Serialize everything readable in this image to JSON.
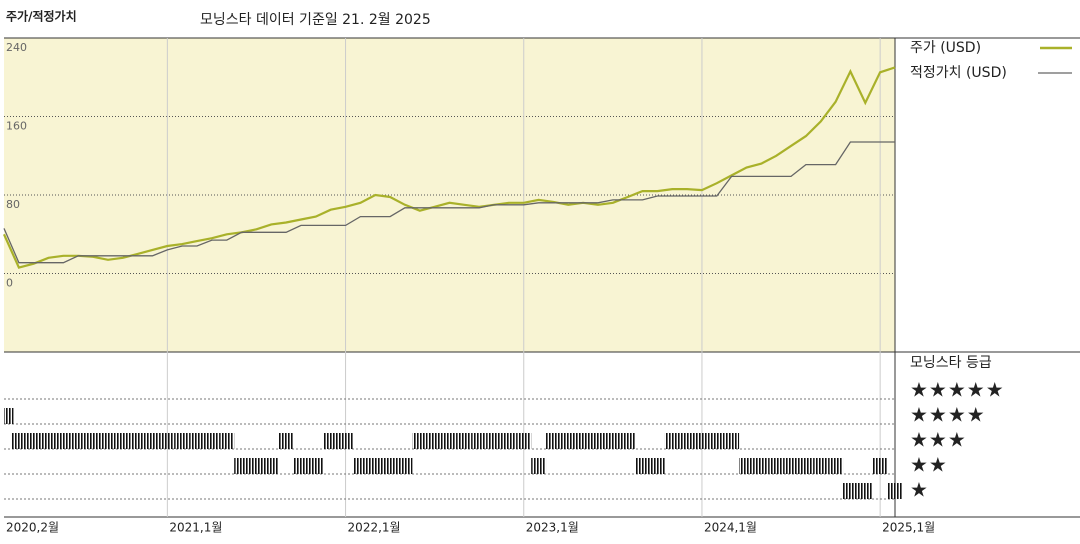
{
  "chart_data": {
    "type": "line",
    "title": "주가/적정가치",
    "subtitle": "모닝스타 데이터 기준일 21. 2월 2025",
    "x": [
      "2020-02",
      "2020-03",
      "2020-04",
      "2020-05",
      "2020-06",
      "2020-07",
      "2020-08",
      "2020-09",
      "2020-10",
      "2020-11",
      "2020-12",
      "2021-01",
      "2021-02",
      "2021-03",
      "2021-04",
      "2021-05",
      "2021-06",
      "2021-07",
      "2021-08",
      "2021-09",
      "2021-10",
      "2021-11",
      "2021-12",
      "2022-01",
      "2022-02",
      "2022-03",
      "2022-04",
      "2022-05",
      "2022-06",
      "2022-07",
      "2022-08",
      "2022-09",
      "2022-10",
      "2022-11",
      "2022-12",
      "2023-01",
      "2023-02",
      "2023-03",
      "2023-04",
      "2023-05",
      "2023-06",
      "2023-07",
      "2023-08",
      "2023-09",
      "2023-10",
      "2023-11",
      "2023-12",
      "2024-01",
      "2024-02",
      "2024-03",
      "2024-04",
      "2024-05",
      "2024-06",
      "2024-07",
      "2024-08",
      "2024-09",
      "2024-10",
      "2024-11",
      "2024-12",
      "2025-01",
      "2025-02"
    ],
    "xticks": [
      {
        "value": "2020-02",
        "label": "2020,2월"
      },
      {
        "value": "2021-01",
        "label": "2021,1월"
      },
      {
        "value": "2022-01",
        "label": "2022,1월"
      },
      {
        "value": "2023-01",
        "label": "2023,1월"
      },
      {
        "value": "2024-01",
        "label": "2024,1월"
      },
      {
        "value": "2025-01",
        "label": "2025,1월"
      }
    ],
    "ylim": [
      -80,
      240
    ],
    "yticks": [
      0,
      80,
      160,
      240
    ],
    "grid": true,
    "series": [
      {
        "name": "주가 (USD)",
        "color": "#a9b12a",
        "values": [
          40,
          6,
          10,
          16,
          18,
          18,
          17,
          14,
          16,
          20,
          24,
          28,
          30,
          33,
          36,
          40,
          42,
          45,
          50,
          52,
          55,
          58,
          65,
          68,
          72,
          80,
          78,
          70,
          64,
          68,
          72,
          70,
          68,
          70,
          72,
          72,
          75,
          73,
          70,
          72,
          70,
          72,
          78,
          84,
          84,
          86,
          86,
          85,
          92,
          100,
          108,
          112,
          120,
          130,
          140,
          155,
          175,
          206,
          174,
          205,
          210
        ]
      },
      {
        "name": "적정가치 (USD)",
        "color": "#666666",
        "values": [
          46,
          11,
          11,
          11,
          11,
          18,
          18,
          18,
          18,
          18,
          18,
          24,
          28,
          28,
          34,
          34,
          42,
          42,
          42,
          42,
          49,
          49,
          49,
          49,
          58,
          58,
          58,
          67,
          67,
          67,
          67,
          67,
          67,
          70,
          70,
          70,
          72,
          72,
          72,
          72,
          72,
          75,
          75,
          75,
          79,
          79,
          79,
          79,
          79,
          99,
          99,
          99,
          99,
          99,
          111,
          111,
          111,
          134,
          134,
          134,
          134
        ]
      }
    ],
    "rating": {
      "title": "모닝스타 등급",
      "levels": [
        {
          "value": 5,
          "label": "★★★★★"
        },
        {
          "value": 4,
          "label": "★★★★"
        },
        {
          "value": 3,
          "label": "★★★"
        },
        {
          "value": 2,
          "label": "★★"
        },
        {
          "value": 1,
          "label": "★"
        }
      ],
      "values": [
        4,
        3,
        3,
        3,
        3,
        3,
        3,
        3,
        3,
        3,
        3,
        3,
        3,
        3,
        3,
        3,
        2,
        2,
        2,
        3,
        2,
        2,
        3,
        3,
        2,
        2,
        2,
        2,
        3,
        3,
        3,
        3,
        3,
        3,
        3,
        3,
        2,
        3,
        3,
        3,
        3,
        3,
        3,
        2,
        2,
        3,
        3,
        3,
        3,
        3,
        2,
        2,
        2,
        2,
        2,
        2,
        2,
        1,
        1,
        2,
        1
      ]
    }
  }
}
